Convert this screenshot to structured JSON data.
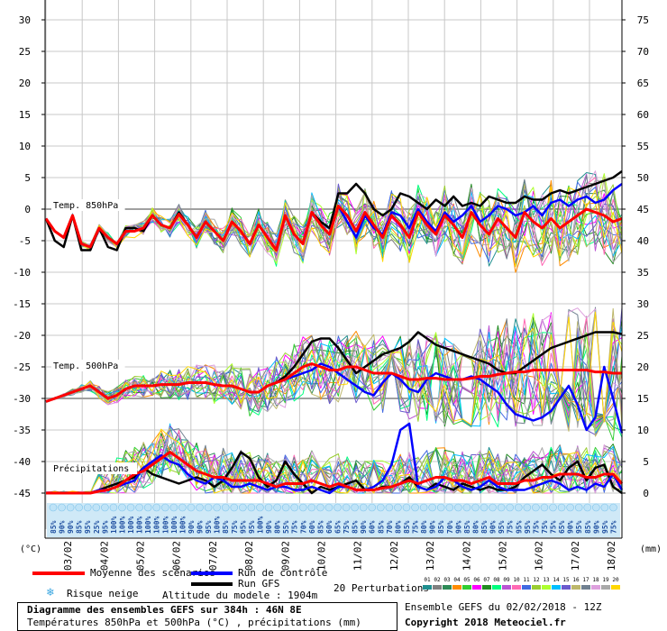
{
  "chart_data": {
    "type": "line",
    "title": "Diagramme des ensembles GEFS sur 384h : 46N 8E",
    "subtitle": "Températures 850hPa et 500hPa (°C) , précipitations (mm)",
    "left_axis": {
      "unit_label": "(°C)",
      "min": -45,
      "max": 30,
      "step": 5,
      "ticks": [
        "30",
        "25",
        "20",
        "15",
        "10",
        "5",
        "0",
        "-5",
        "-10",
        "-15",
        "-20",
        "-25",
        "-30",
        "-35",
        "-40",
        "-45"
      ]
    },
    "right_axis": {
      "unit_label": "(mm)",
      "min": 0,
      "max": 75,
      "step": 5,
      "ticks": [
        "75",
        "70",
        "65",
        "60",
        "55",
        "50",
        "45",
        "40",
        "35",
        "30",
        "25",
        "20",
        "15",
        "10",
        "5",
        "0"
      ]
    },
    "dates": [
      "03/02",
      "04/02",
      "05/02",
      "06/02",
      "07/02",
      "08/02",
      "09/02",
      "10/02",
      "11/02",
      "12/02",
      "13/02",
      "14/02",
      "15/02",
      "16/02",
      "17/02",
      "18/02"
    ],
    "grid": true,
    "level_labels": [
      "Temp. 850hPa",
      "Temp. 500hPa",
      "Précipitations"
    ],
    "snow_risk_pct": [
      "85%",
      "90%",
      "90%",
      "85%",
      "95%",
      "25%",
      "95%",
      "100%",
      "100%",
      "100%",
      "100%",
      "100%",
      "100%",
      "100%",
      "100%",
      "100%",
      "90%",
      "90%",
      "95%",
      "100%",
      "85%",
      "75%",
      "95%",
      "95%",
      "100%",
      "90%",
      "80%",
      "55%",
      "75%",
      "70%",
      "60%",
      "85%",
      "60%",
      "65%",
      "75%",
      "85%",
      "90%",
      "60%",
      "85%",
      "70%",
      "80%",
      "85%",
      "75%",
      "80%",
      "90%",
      "85%",
      "70%",
      "90%",
      "85%",
      "80%",
      "85%",
      "90%",
      "95%",
      "75%",
      "95%",
      "95%",
      "75%",
      "75%",
      "75%",
      "65%",
      "90%",
      "95%",
      "85%",
      "90%",
      "95%",
      "75%"
    ],
    "t850": {
      "mean": [
        -1.5,
        -3.5,
        -4.5,
        -1.0,
        -5.5,
        -6.0,
        -3.0,
        -4.5,
        -5.5,
        -3.5,
        -3.5,
        -3.0,
        -1.0,
        -2.5,
        -3.0,
        -0.8,
        -2.5,
        -4.5,
        -2.0,
        -3.5,
        -5.0,
        -2.0,
        -3.5,
        -5.5,
        -2.5,
        -4.5,
        -6.5,
        -1.0,
        -4.0,
        -5.5,
        -0.5,
        -2.5,
        -4.0,
        0.5,
        -1.0,
        -3.5,
        -0.5,
        -2.5,
        -4.5,
        -1.0,
        -2.5,
        -4.5,
        -0.5,
        -2.5,
        -4.0,
        -1.0,
        -2.5,
        -4.5,
        -0.5,
        -2.5,
        -4.0,
        -1.5,
        -3.0,
        -4.5,
        -0.5,
        -2.0,
        -3.0,
        -1.5,
        -3.0,
        -2.0,
        -1.0,
        0.0,
        -0.5,
        -1.0,
        -2.0,
        -1.5
      ],
      "control": [
        -1.5,
        -3.5,
        -4.5,
        -1.0,
        -5.5,
        -6.0,
        -3.0,
        -4.5,
        -5.5,
        -3.5,
        -3.5,
        -3.0,
        -1.0,
        -2.5,
        -3.0,
        -0.8,
        -2.5,
        -4.5,
        -2.0,
        -3.5,
        -5.0,
        -2.0,
        -3.5,
        -5.5,
        -2.5,
        -4.5,
        -6.5,
        -1.0,
        -4.0,
        -5.5,
        -0.5,
        -2.5,
        -4.0,
        0.5,
        -2.0,
        -4.5,
        -1.0,
        -3.0,
        -4.0,
        -0.5,
        -1.0,
        -3.0,
        0.0,
        -2.0,
        -3.5,
        -0.5,
        -2.0,
        -1.0,
        0.5,
        -2.0,
        -1.0,
        0.5,
        0.0,
        -1.0,
        -0.5,
        0.5,
        -1.0,
        1.0,
        1.5,
        0.5,
        1.5,
        2.0,
        1.0,
        1.5,
        3.0,
        4.0
      ],
      "gfs": [
        -1.5,
        -5.0,
        -6.0,
        -1.0,
        -6.5,
        -6.5,
        -3.0,
        -6.0,
        -6.5,
        -3.0,
        -3.0,
        -3.5,
        -1.0,
        -2.5,
        -3.0,
        -0.5,
        -2.5,
        -4.5,
        -2.0,
        -3.5,
        -5.0,
        -2.0,
        -3.5,
        -5.5,
        -2.5,
        -4.5,
        -6.5,
        -1.0,
        -4.0,
        -5.5,
        -0.5,
        -2.0,
        -3.0,
        2.5,
        2.5,
        4.0,
        2.5,
        0.0,
        -1.0,
        0.0,
        2.5,
        2.0,
        1.0,
        0.0,
        1.5,
        0.5,
        2.0,
        0.5,
        1.0,
        0.5,
        2.0,
        1.5,
        1.0,
        1.0,
        2.0,
        1.5,
        1.5,
        2.5,
        3.0,
        2.5,
        3.0,
        3.5,
        4.0,
        4.5,
        5.0,
        6.0
      ]
    },
    "t500": {
      "mean": [
        -30.5,
        -30.0,
        -29.5,
        -29.0,
        -28.5,
        -28.0,
        -29.0,
        -30.0,
        -29.5,
        -28.5,
        -28.0,
        -28.0,
        -28.0,
        -27.8,
        -27.8,
        -27.8,
        -27.5,
        -27.5,
        -27.5,
        -27.8,
        -28.0,
        -28.0,
        -28.5,
        -29.0,
        -29.0,
        -28.0,
        -27.5,
        -27.0,
        -26.0,
        -25.0,
        -24.5,
        -25.0,
        -25.5,
        -25.5,
        -25.0,
        -25.0,
        -25.5,
        -26.0,
        -26.0,
        -26.0,
        -26.5,
        -27.0,
        -27.0,
        -26.8,
        -26.8,
        -27.0,
        -27.0,
        -27.0,
        -26.8,
        -26.5,
        -26.5,
        -26.2,
        -26.0,
        -25.8,
        -25.8,
        -25.5,
        -25.5,
        -25.5,
        -25.5,
        -25.5,
        -25.5,
        -25.5,
        -25.8,
        -25.8,
        -26.0,
        -26.0
      ],
      "control": [
        -30.5,
        -30.0,
        -29.5,
        -29.0,
        -28.5,
        -28.0,
        -29.0,
        -30.0,
        -29.5,
        -28.5,
        -28.0,
        -28.0,
        -28.0,
        -27.8,
        -27.8,
        -27.8,
        -27.5,
        -27.5,
        -27.5,
        -27.8,
        -28.0,
        -28.0,
        -28.5,
        -29.0,
        -29.0,
        -28.0,
        -27.5,
        -27.0,
        -26.5,
        -26.0,
        -25.5,
        -24.5,
        -25.0,
        -26.0,
        -27.0,
        -28.0,
        -29.0,
        -29.5,
        -27.5,
        -26.0,
        -27.0,
        -28.5,
        -29.0,
        -27.0,
        -26.0,
        -26.5,
        -27.0,
        -27.0,
        -26.5,
        -27.0,
        -28.0,
        -29.0,
        -31.0,
        -32.5,
        -33.0,
        -33.5,
        -33.0,
        -32.0,
        -30.0,
        -28.0,
        -31.0,
        -35.0,
        -33.0,
        -25.0,
        -30.0,
        -35.5
      ],
      "gfs": [
        -30.5,
        -30.0,
        -29.5,
        -29.0,
        -28.5,
        -28.0,
        -29.0,
        -30.0,
        -29.5,
        -28.5,
        -28.0,
        -28.0,
        -28.0,
        -27.8,
        -27.8,
        -27.8,
        -27.5,
        -27.5,
        -27.5,
        -27.8,
        -28.0,
        -28.0,
        -28.5,
        -29.0,
        -29.0,
        -28.0,
        -27.5,
        -26.5,
        -25.0,
        -23.0,
        -21.0,
        -20.5,
        -20.5,
        -22.0,
        -24.0,
        -26.0,
        -25.0,
        -24.0,
        -23.0,
        -22.5,
        -22.0,
        -21.0,
        -19.5,
        -20.5,
        -21.5,
        -22.0,
        -22.5,
        -23.0,
        -23.5,
        -24.0,
        -24.5,
        -25.5,
        -26.0,
        -26.0,
        -25.0,
        -24.0,
        -23.0,
        -22.0,
        -21.5,
        -21.0,
        -20.5,
        -20.0,
        -19.5,
        -19.5,
        -19.5,
        -19.8
      ]
    },
    "precip": {
      "mean": [
        0.0,
        0.0,
        0.0,
        0.0,
        0.0,
        0.0,
        0.3,
        0.5,
        1.0,
        2.0,
        3.0,
        3.5,
        4.5,
        5.5,
        6.5,
        5.5,
        4.5,
        3.5,
        3.0,
        2.5,
        2.5,
        2.0,
        2.0,
        2.0,
        2.0,
        1.5,
        1.0,
        1.5,
        1.5,
        1.5,
        2.0,
        1.5,
        1.0,
        1.5,
        1.0,
        0.5,
        0.5,
        0.5,
        0.8,
        1.0,
        1.5,
        2.0,
        1.5,
        2.0,
        2.5,
        2.5,
        2.0,
        2.0,
        1.5,
        2.0,
        2.5,
        1.5,
        1.5,
        1.5,
        2.0,
        2.0,
        2.5,
        2.5,
        3.0,
        3.0,
        3.0,
        2.5,
        2.5,
        3.0,
        3.0,
        1.5
      ],
      "control": [
        0.0,
        0.0,
        0.0,
        0.0,
        0.0,
        0.0,
        0.5,
        0.5,
        1.0,
        1.5,
        2.0,
        4.0,
        5.0,
        6.0,
        5.0,
        4.5,
        3.0,
        2.0,
        1.5,
        2.5,
        2.0,
        1.0,
        1.0,
        1.5,
        1.0,
        0.5,
        1.0,
        1.0,
        0.5,
        0.5,
        1.0,
        0.5,
        0.0,
        1.0,
        1.0,
        0.5,
        0.5,
        1.0,
        2.0,
        4.5,
        10.0,
        11.0,
        1.0,
        0.5,
        1.0,
        2.5,
        2.0,
        1.0,
        0.5,
        1.0,
        2.0,
        1.0,
        0.5,
        0.5,
        0.5,
        1.0,
        1.5,
        2.0,
        1.5,
        0.5,
        1.0,
        0.5,
        1.5,
        1.0,
        3.0,
        0.5
      ],
      "gfs": [
        0.0,
        0.0,
        0.0,
        0.0,
        0.0,
        0.0,
        0.5,
        1.0,
        1.5,
        2.0,
        2.5,
        4.0,
        3.0,
        2.5,
        2.0,
        1.5,
        2.0,
        2.5,
        2.0,
        1.0,
        2.0,
        4.0,
        6.5,
        5.5,
        2.5,
        1.0,
        2.0,
        5.0,
        3.0,
        1.5,
        0.0,
        1.0,
        0.5,
        1.0,
        1.5,
        2.0,
        0.5,
        0.5,
        1.0,
        1.0,
        1.5,
        2.5,
        1.0,
        0.5,
        1.5,
        1.0,
        0.5,
        1.5,
        1.0,
        0.5,
        1.0,
        0.5,
        0.5,
        1.0,
        2.5,
        3.5,
        4.5,
        3.0,
        2.0,
        4.0,
        5.0,
        2.0,
        4.0,
        4.5,
        1.0,
        0.0
      ]
    },
    "legend": {
      "mean": "Moyenne des scénarios",
      "control": "Run de contrôle",
      "gfs": "Run GFS",
      "snow": "Risque neige",
      "altitude": "Altitude du modele : 1904m",
      "perturbations": "20 Perturbations",
      "perturbation_ids": [
        "01",
        "02",
        "03",
        "04",
        "05",
        "06",
        "07",
        "08",
        "09",
        "10",
        "11",
        "12",
        "13",
        "14",
        "15",
        "16",
        "17",
        "18",
        "19",
        "20"
      ],
      "perturbation_colors": [
        "#1f8f8f",
        "#808080",
        "#2e8b57",
        "#ff8c00",
        "#32cd32",
        "#ff00ff",
        "#228b22",
        "#00ff7f",
        "#ba55d3",
        "#ff69b4",
        "#4169e1",
        "#9acd32",
        "#adff2f",
        "#00bfff",
        "#6a5acd",
        "#bdb76b",
        "#708090",
        "#dda0dd",
        "#a9a9a9",
        "#ffd700"
      ]
    },
    "series_colors": {
      "mean": "#ff0000",
      "control": "#0000ff",
      "gfs": "#000000"
    },
    "run_info": "Ensemble GEFS du 02/02/2018 - 12Z",
    "copyright": "Copyright 2018 Meteociel.fr"
  }
}
